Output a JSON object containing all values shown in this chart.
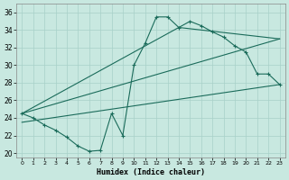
{
  "xlabel": "Humidex (Indice chaleur)",
  "xlim": [
    -0.5,
    23.5
  ],
  "ylim": [
    19.5,
    37
  ],
  "xticks": [
    0,
    1,
    2,
    3,
    4,
    5,
    6,
    7,
    8,
    9,
    10,
    11,
    12,
    13,
    14,
    15,
    16,
    17,
    18,
    19,
    20,
    21,
    22,
    23
  ],
  "yticks": [
    20,
    22,
    24,
    26,
    28,
    30,
    32,
    34,
    36
  ],
  "bg_color": "#c8e8e0",
  "grid_color": "#a8d0c8",
  "line_color": "#1a6b5a",
  "curve_x": [
    0,
    1,
    2,
    3,
    4,
    5,
    6,
    7,
    8,
    9,
    10,
    11,
    12,
    13,
    14,
    15,
    16,
    17,
    18,
    19,
    20,
    21,
    22,
    23
  ],
  "curve_y": [
    24.5,
    24.0,
    23.2,
    22.6,
    21.8,
    20.8,
    20.2,
    20.3,
    24.5,
    22.0,
    30.0,
    32.5,
    35.5,
    35.5,
    34.3,
    35.0,
    34.5,
    33.8,
    33.2,
    32.2,
    31.5,
    29.0,
    29.0,
    27.8
  ],
  "line1_x": [
    0,
    14,
    23
  ],
  "line1_y": [
    24.5,
    34.3,
    33.0
  ],
  "line2_x": [
    0,
    23
  ],
  "line2_y": [
    24.5,
    33.0
  ],
  "line3_x": [
    0,
    23
  ],
  "line3_y": [
    23.5,
    27.8
  ]
}
